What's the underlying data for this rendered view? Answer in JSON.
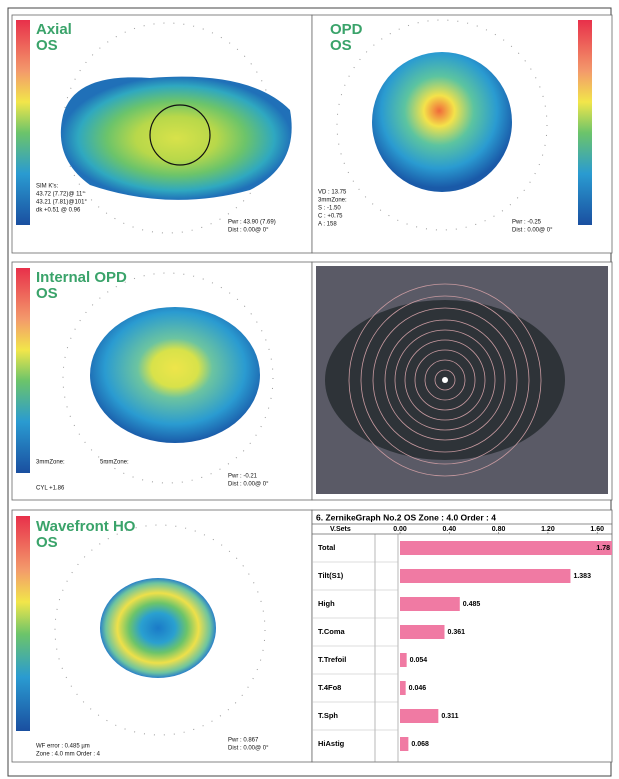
{
  "axial": {
    "title": "Axial",
    "eye": "OS",
    "notes": [
      "SIM K's:",
      "43.72 (7.72)@ 11°",
      "43.21 (7.81)@101°",
      "dk +0.51 @ 0.96",
      "Pwr : 43.90 (7.69)",
      "Dist : 0.00@ 0°"
    ]
  },
  "opd": {
    "title": "OPD",
    "eye": "OS",
    "notes": [
      "VD : 13.75",
      "3mmZone:",
      "S : -1.50",
      "C : +0.75",
      "A : 158",
      "Pwr : -0.25",
      "Dist : 0.00@ 0°"
    ]
  },
  "internal_opd": {
    "title": "Internal OPD",
    "eye": "OS",
    "notes": [
      "3mmZone:",
      "5mmZone:",
      "CYL +1.86",
      "Pwr : -0.21",
      "Dist : 0.00@ 0°"
    ]
  },
  "wavefront_ho": {
    "title": "Wavefront HO",
    "eye": "OS",
    "notes": [
      "WF error : 0.485 µm",
      "Zone : 4.0 mm Order : 4",
      "Pwr : 0.867",
      "Dist : 0.00@ 0°"
    ]
  },
  "chart_data": {
    "type": "bar",
    "title": "6. ZernikeGraph No.2 OS Zone : 4.0 Order : 4",
    "header": "V.Sets",
    "categories": [
      "Total",
      "Tilt(S1)",
      "High",
      "T.Coma",
      "T.Trefoil",
      "T.4Fo8",
      "T.Sph",
      "HiAstig"
    ],
    "values": [
      1.78,
      1.383,
      0.485,
      0.361,
      0.054,
      0.046,
      0.311,
      0.068
    ],
    "color": "#f07aa3",
    "xlim": [
      0,
      1.72
    ],
    "xticks": [
      {
        "value": 0,
        "label": "0.00"
      },
      {
        "value": 0.4,
        "label": "0.40"
      },
      {
        "value": 0.8,
        "label": "0.80"
      },
      {
        "value": 1.2,
        "label": "1.20"
      },
      {
        "value": 1.6,
        "label": "1.60"
      }
    ]
  }
}
